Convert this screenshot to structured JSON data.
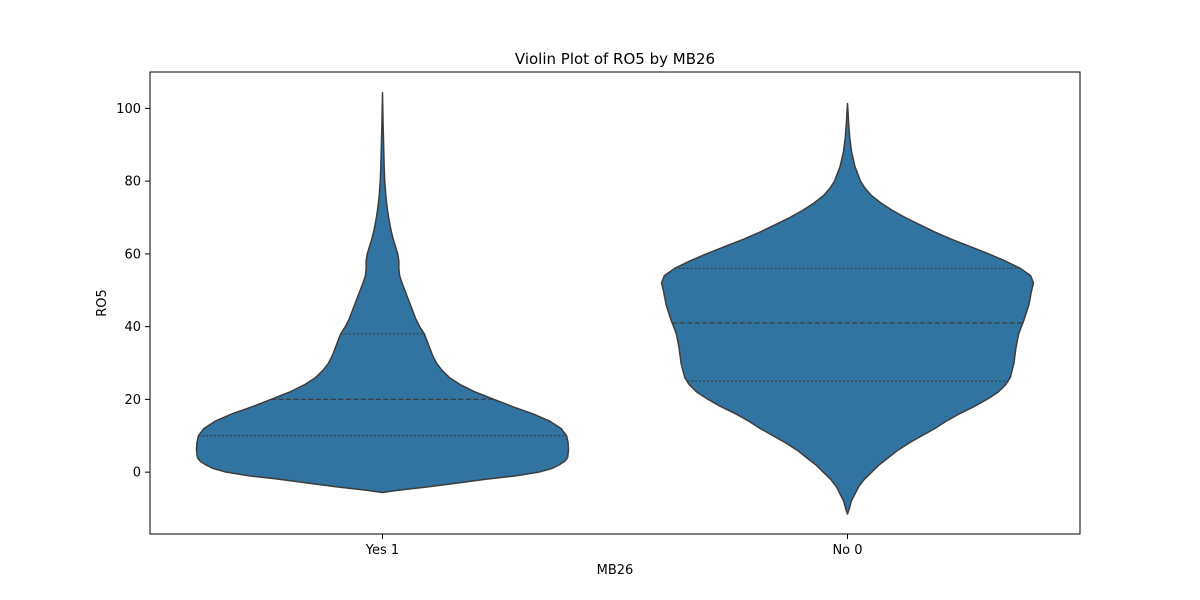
{
  "chart_data": {
    "type": "violin",
    "title": "Violin Plot of RO5 by MB26",
    "xlabel": "MB26",
    "ylabel": "RO5",
    "ylim": [
      -17,
      110
    ],
    "yticks": [
      0,
      20,
      40,
      60,
      80,
      100
    ],
    "grid": false,
    "fill_color": "#3274a1",
    "edge_color": "#3d3d3d",
    "categories": [
      "Yes 1",
      "No 0"
    ],
    "violins": [
      {
        "category": "Yes 1",
        "quartiles": [
          10,
          20,
          38
        ],
        "density_profile": [
          [
            -5.6,
            0.0
          ],
          [
            -5.0,
            0.08
          ],
          [
            -4,
            0.25
          ],
          [
            -3,
            0.4
          ],
          [
            -2,
            0.55
          ],
          [
            -1,
            0.72
          ],
          [
            0,
            0.84
          ],
          [
            1,
            0.91
          ],
          [
            2,
            0.95
          ],
          [
            3,
            0.98
          ],
          [
            4,
            0.995
          ],
          [
            6,
            1.0
          ],
          [
            8,
            0.998
          ],
          [
            10,
            0.99
          ],
          [
            12,
            0.96
          ],
          [
            14,
            0.9
          ],
          [
            16,
            0.81
          ],
          [
            18,
            0.7
          ],
          [
            20,
            0.6
          ],
          [
            22,
            0.5
          ],
          [
            24,
            0.42
          ],
          [
            26,
            0.36
          ],
          [
            28,
            0.32
          ],
          [
            30,
            0.29
          ],
          [
            32,
            0.27
          ],
          [
            34,
            0.255
          ],
          [
            36,
            0.24
          ],
          [
            38,
            0.225
          ],
          [
            40,
            0.2
          ],
          [
            42,
            0.18
          ],
          [
            44,
            0.165
          ],
          [
            46,
            0.15
          ],
          [
            48,
            0.135
          ],
          [
            50,
            0.12
          ],
          [
            52,
            0.105
          ],
          [
            54,
            0.092
          ],
          [
            56,
            0.088
          ],
          [
            58,
            0.088
          ],
          [
            60,
            0.082
          ],
          [
            62,
            0.07
          ],
          [
            64,
            0.058
          ],
          [
            66,
            0.048
          ],
          [
            68,
            0.04
          ],
          [
            70,
            0.033
          ],
          [
            72,
            0.027
          ],
          [
            74,
            0.022
          ],
          [
            76,
            0.018
          ],
          [
            78,
            0.015
          ],
          [
            80,
            0.012
          ],
          [
            84,
            0.009
          ],
          [
            88,
            0.007
          ],
          [
            92,
            0.005
          ],
          [
            96,
            0.003
          ],
          [
            100,
            0.0015
          ],
          [
            104.3,
            0.0
          ]
        ]
      },
      {
        "category": "No 0",
        "quartiles": [
          25,
          41,
          56
        ],
        "density_profile": [
          [
            -11.5,
            0.0
          ],
          [
            -10,
            0.01
          ],
          [
            -8,
            0.02
          ],
          [
            -6,
            0.04
          ],
          [
            -4,
            0.06
          ],
          [
            -2,
            0.09
          ],
          [
            0,
            0.13
          ],
          [
            2,
            0.17
          ],
          [
            4,
            0.22
          ],
          [
            6,
            0.27
          ],
          [
            8,
            0.33
          ],
          [
            10,
            0.4
          ],
          [
            12,
            0.47
          ],
          [
            14,
            0.53
          ],
          [
            16,
            0.6
          ],
          [
            18,
            0.68
          ],
          [
            20,
            0.75
          ],
          [
            22,
            0.81
          ],
          [
            24,
            0.85
          ],
          [
            26,
            0.875
          ],
          [
            28,
            0.885
          ],
          [
            30,
            0.895
          ],
          [
            34,
            0.905
          ],
          [
            38,
            0.92
          ],
          [
            42,
            0.95
          ],
          [
            46,
            0.975
          ],
          [
            50,
            0.99
          ],
          [
            52,
            1.0
          ],
          [
            54,
            0.985
          ],
          [
            56,
            0.93
          ],
          [
            58,
            0.85
          ],
          [
            60,
            0.76
          ],
          [
            62,
            0.66
          ],
          [
            64,
            0.56
          ],
          [
            66,
            0.47
          ],
          [
            68,
            0.39
          ],
          [
            70,
            0.31
          ],
          [
            72,
            0.24
          ],
          [
            74,
            0.18
          ],
          [
            76,
            0.13
          ],
          [
            78,
            0.095
          ],
          [
            80,
            0.07
          ],
          [
            84,
            0.04
          ],
          [
            88,
            0.022
          ],
          [
            92,
            0.012
          ],
          [
            96,
            0.006
          ],
          [
            99,
            0.003
          ],
          [
            101.3,
            0.0
          ]
        ]
      }
    ]
  }
}
